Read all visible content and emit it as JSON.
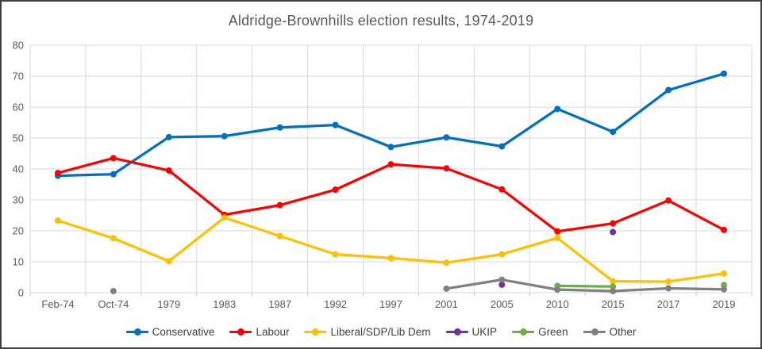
{
  "chart_data": {
    "type": "line",
    "title": "Aldridge-Brownhills election results, 1974-2019",
    "categories": [
      "Feb-74",
      "Oct-74",
      "1979",
      "1983",
      "1987",
      "1992",
      "1997",
      "2001",
      "2005",
      "2010",
      "2015",
      "2017",
      "2019"
    ],
    "xlabel": "",
    "ylabel": "",
    "ylim": [
      0,
      80
    ],
    "ytick_step": 10,
    "grid": true,
    "legend_position": "bottom",
    "axis_text_color": "#595959",
    "grid_color": "#d9d9d9",
    "series": [
      {
        "name": "Conservative",
        "color": "#0070c0",
        "values": [
          37.8,
          38.3,
          50.3,
          50.6,
          53.4,
          54.2,
          47.1,
          50.2,
          47.3,
          59.4,
          52.0,
          65.5,
          70.8
        ]
      },
      {
        "name": "Labour",
        "color": "#ff0000",
        "values": [
          38.7,
          43.5,
          39.5,
          25.2,
          28.3,
          33.3,
          41.5,
          40.2,
          33.4,
          19.8,
          22.4,
          29.8,
          20.3
        ]
      },
      {
        "name": "Liberal/SDP/Lib Dem",
        "color": "#ffc000",
        "values": [
          23.3,
          17.6,
          10.2,
          24.3,
          18.3,
          12.4,
          11.2,
          9.7,
          12.4,
          17.7,
          3.7,
          3.6,
          6.2
        ]
      },
      {
        "name": "UKIP",
        "color": "#7030a0",
        "values": [
          null,
          null,
          null,
          null,
          null,
          null,
          null,
          null,
          2.6,
          null,
          19.6,
          null,
          null
        ]
      },
      {
        "name": "Green",
        "color": "#70ad47",
        "values": [
          null,
          null,
          null,
          null,
          null,
          null,
          null,
          null,
          null,
          2.2,
          2.0,
          null,
          2.5
        ]
      },
      {
        "name": "Other",
        "color": "#808080",
        "values": [
          null,
          0.5,
          null,
          null,
          null,
          null,
          null,
          1.3,
          4.2,
          1.0,
          0.5,
          1.4,
          1.1
        ]
      }
    ]
  }
}
